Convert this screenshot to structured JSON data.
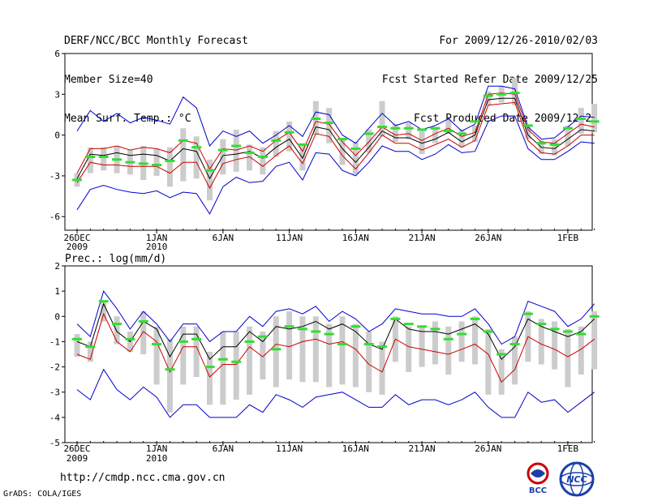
{
  "header": {
    "left": [
      "DERF/NCC/BCC Monthly Forecast",
      "Member Size=40",
      "Mean Surf. Temp.: °C"
    ],
    "right": [
      "For 2009/12/26-2010/02/03",
      "Fcst Started Refer Date 2009/12/25",
      "Fcst Produced Date 2009/12/26"
    ]
  },
  "footer": {
    "url": "http://cmdp.ncc.cma.gov.cn",
    "credit": "GrADS: COLA/IGES"
  },
  "logos": [
    {
      "icon": "bcc-logo",
      "text": "BCC"
    },
    {
      "icon": "ncc-logo",
      "text": "NCC"
    }
  ],
  "colors": {
    "mean": "#000000",
    "upper": "#0000cc",
    "lower": "#0000cc",
    "median_sd": "#cc0000",
    "box": "#cccccc",
    "obs": "#33dd33",
    "axis": "#000000"
  },
  "chart_data": [
    {
      "type": "line",
      "title": "Mean Surf. Temp.: °C",
      "ylim": [
        -7,
        6
      ],
      "yticks": [
        6,
        3,
        0,
        -3,
        -6
      ],
      "xticks": [
        {
          "day": 0,
          "label": "26DEC",
          "sub": "2009"
        },
        {
          "day": 6,
          "label": "1JAN",
          "sub": "2010"
        },
        {
          "day": 11,
          "label": "6JAN",
          "sub": ""
        },
        {
          "day": 16,
          "label": "11JAN",
          "sub": ""
        },
        {
          "day": 21,
          "label": "16JAN",
          "sub": ""
        },
        {
          "day": 26,
          "label": "21JAN",
          "sub": ""
        },
        {
          "day": 31,
          "label": "26JAN",
          "sub": ""
        },
        {
          "day": 37,
          "label": "1FEB",
          "sub": ""
        }
      ],
      "n_days": 40,
      "series": [
        {
          "name": "upper",
          "values": [
            0.3,
            1.8,
            1.0,
            1.6,
            0.9,
            1.3,
            1.1,
            0.8,
            2.8,
            2.0,
            -0.8,
            0.3,
            -0.1,
            0.3,
            -0.6,
            0.0,
            0.7,
            -0.1,
            1.7,
            1.5,
            0.0,
            -0.6,
            0.5,
            1.6,
            0.7,
            1.0,
            0.4,
            0.7,
            1.2,
            0.3,
            0.8,
            3.6,
            3.6,
            3.4,
            0.6,
            -0.3,
            -0.2,
            0.6,
            1.4,
            1.3
          ]
        },
        {
          "name": "median_sd",
          "values": [
            -2.8,
            -1.0,
            -1.0,
            -0.8,
            -1.1,
            -0.9,
            -1.0,
            -1.3,
            -0.4,
            -0.6,
            -2.5,
            -1.0,
            -1.1,
            -0.8,
            -1.2,
            -0.4,
            0.2,
            -1.2,
            1.0,
            0.8,
            -0.5,
            -1.5,
            -0.5,
            0.6,
            0.0,
            0.1,
            -0.4,
            0.1,
            0.5,
            -0.1,
            0.2,
            3.0,
            3.1,
            3.0,
            0.4,
            -0.5,
            -0.6,
            0.1,
            0.8,
            0.6
          ]
        },
        {
          "name": "mean",
          "values": [
            -3.2,
            -1.4,
            -1.5,
            -1.3,
            -1.5,
            -1.4,
            -1.5,
            -1.9,
            -1.0,
            -1.2,
            -3.2,
            -1.5,
            -1.4,
            -1.2,
            -1.7,
            -0.9,
            -0.3,
            -1.7,
            0.6,
            0.4,
            -1.0,
            -2.0,
            -0.9,
            0.3,
            -0.2,
            -0.2,
            -0.6,
            -0.3,
            0.2,
            -0.5,
            0.0,
            2.6,
            2.7,
            2.7,
            0.0,
            -0.9,
            -1.0,
            -0.3,
            0.4,
            0.3
          ]
        },
        {
          "name": "median_sd",
          "values": [
            -3.5,
            -2.0,
            -2.2,
            -2.2,
            -2.3,
            -2.3,
            -2.3,
            -2.8,
            -2.0,
            -2.0,
            -3.9,
            -2.1,
            -1.8,
            -1.6,
            -2.3,
            -1.5,
            -0.8,
            -2.1,
            0.1,
            -0.1,
            -1.5,
            -2.5,
            -1.3,
            0.0,
            -0.6,
            -0.6,
            -1.1,
            -0.7,
            -0.3,
            -0.9,
            -0.4,
            2.2,
            2.3,
            2.4,
            -0.4,
            -1.3,
            -1.4,
            -0.8,
            0.0,
            0.0
          ]
        },
        {
          "name": "lower",
          "values": [
            -5.5,
            -4.0,
            -3.7,
            -4.0,
            -4.2,
            -4.3,
            -4.1,
            -4.6,
            -4.2,
            -4.3,
            -5.8,
            -3.8,
            -3.1,
            -3.5,
            -3.4,
            -2.3,
            -2.0,
            -3.3,
            -1.3,
            -1.4,
            -2.6,
            -3.0,
            -2.0,
            -0.8,
            -1.2,
            -1.2,
            -1.8,
            -1.4,
            -0.7,
            -1.3,
            -1.2,
            1.0,
            1.4,
            1.4,
            -1.0,
            -1.8,
            -1.8,
            -1.2,
            -0.5,
            -0.6
          ]
        },
        {
          "name": "box_top",
          "values": [
            -2.8,
            -0.9,
            -0.9,
            -0.8,
            -1.1,
            -0.8,
            -1.0,
            -0.9,
            0.5,
            -0.1,
            -1.8,
            -0.3,
            0.4,
            -0.7,
            -0.9,
            0.3,
            1.0,
            -0.7,
            2.5,
            2.0,
            -0.2,
            -0.5,
            0.4,
            2.5,
            0.8,
            0.9,
            0.3,
            0.6,
            1.2,
            0.4,
            0.7,
            3.2,
            3.6,
            4.2,
            0.6,
            -0.4,
            -0.3,
            0.7,
            2.0,
            2.3
          ]
        },
        {
          "name": "box_bottom",
          "values": [
            -3.8,
            -2.8,
            -2.6,
            -2.8,
            -2.9,
            -3.3,
            -3.0,
            -3.8,
            -3.4,
            -3.2,
            -4.8,
            -2.9,
            -2.7,
            -2.6,
            -2.9,
            -1.6,
            -1.2,
            -2.6,
            0.0,
            -0.6,
            -2.2,
            -2.9,
            -1.3,
            -0.1,
            -0.5,
            -0.3,
            -1.4,
            -0.6,
            0.1,
            -0.9,
            -0.5,
            2.2,
            2.4,
            2.2,
            -0.3,
            -1.4,
            -1.5,
            -0.8,
            0.1,
            0.2
          ]
        },
        {
          "name": "obs",
          "values": [
            -3.3,
            -1.6,
            -1.6,
            -1.8,
            -2.0,
            -2.1,
            -2.2,
            -1.9,
            -0.4,
            -0.9,
            -2.6,
            -1.1,
            -0.8,
            -1.3,
            -1.6,
            -0.4,
            0.2,
            -0.7,
            1.2,
            0.9,
            -0.3,
            -1.0,
            0.1,
            0.6,
            0.5,
            0.5,
            0.4,
            0.5,
            0.3,
            0.1,
            1.0,
            2.9,
            3.0,
            3.1,
            0.7,
            -0.6,
            -0.7,
            0.5,
            1.2,
            1.0
          ]
        }
      ]
    },
    {
      "type": "line",
      "title": "Prec.: log(mm/d)",
      "ylim": [
        -5,
        2
      ],
      "yticks": [
        2,
        1,
        0,
        -1,
        -2,
        -3,
        -4,
        -5
      ],
      "xticks": [
        {
          "day": 0,
          "label": "26DEC",
          "sub": "2009"
        },
        {
          "day": 6,
          "label": "1JAN",
          "sub": "2010"
        },
        {
          "day": 11,
          "label": "6JAN",
          "sub": ""
        },
        {
          "day": 16,
          "label": "11JAN",
          "sub": ""
        },
        {
          "day": 21,
          "label": "16JAN",
          "sub": ""
        },
        {
          "day": 26,
          "label": "21JAN",
          "sub": ""
        },
        {
          "day": 31,
          "label": "26JAN",
          "sub": ""
        },
        {
          "day": 37,
          "label": "1FEB",
          "sub": ""
        }
      ],
      "n_days": 40,
      "series": [
        {
          "name": "upper",
          "values": [
            -0.3,
            -0.8,
            1.0,
            0.3,
            -0.5,
            0.2,
            -0.3,
            -1.0,
            -0.3,
            -0.3,
            -1.0,
            -0.6,
            -0.6,
            0.0,
            -0.4,
            0.2,
            0.3,
            0.1,
            0.4,
            -0.2,
            0.2,
            -0.1,
            -0.6,
            -0.3,
            0.3,
            0.2,
            0.1,
            0.1,
            0.0,
            0.0,
            0.3,
            -0.3,
            -1.1,
            -0.8,
            0.6,
            0.4,
            0.2,
            -0.4,
            -0.1,
            0.5
          ]
        },
        {
          "name": "mean",
          "values": [
            -1.0,
            -1.2,
            0.5,
            -0.6,
            -1.0,
            -0.2,
            -0.5,
            -1.6,
            -0.7,
            -0.7,
            -1.7,
            -1.2,
            -1.2,
            -0.6,
            -1.0,
            -0.4,
            -0.5,
            -0.4,
            -0.2,
            -0.5,
            -0.3,
            -0.6,
            -1.1,
            -1.3,
            -0.1,
            -0.5,
            -0.6,
            -0.6,
            -0.7,
            -0.5,
            -0.3,
            -0.7,
            -1.7,
            -1.2,
            -0.1,
            -0.4,
            -0.6,
            -0.8,
            -0.6,
            -0.1
          ]
        },
        {
          "name": "median_sd",
          "values": [
            -1.5,
            -1.7,
            0.1,
            -1.0,
            -1.4,
            -0.6,
            -1.0,
            -2.2,
            -1.2,
            -1.2,
            -2.4,
            -1.9,
            -1.9,
            -1.2,
            -1.6,
            -1.1,
            -1.2,
            -1.0,
            -0.9,
            -1.1,
            -1.0,
            -1.3,
            -1.9,
            -2.2,
            -0.9,
            -1.2,
            -1.3,
            -1.4,
            -1.5,
            -1.3,
            -1.1,
            -1.5,
            -2.6,
            -2.1,
            -0.8,
            -1.1,
            -1.3,
            -1.6,
            -1.3,
            -0.9
          ]
        },
        {
          "name": "lower",
          "values": [
            -2.9,
            -3.3,
            -2.1,
            -2.9,
            -3.3,
            -2.8,
            -3.2,
            -4.0,
            -3.5,
            -3.5,
            -4.0,
            -4.0,
            -4.0,
            -3.5,
            -3.8,
            -3.1,
            -3.3,
            -3.6,
            -3.2,
            -3.1,
            -3.0,
            -3.3,
            -3.6,
            -3.6,
            -3.1,
            -3.5,
            -3.3,
            -3.3,
            -3.5,
            -3.3,
            -3.0,
            -3.6,
            -4.0,
            -4.0,
            -3.0,
            -3.4,
            -3.3,
            -3.8,
            -3.4,
            -3.0
          ]
        },
        {
          "name": "box_top",
          "values": [
            -0.7,
            -1.0,
            0.6,
            0.0,
            -0.6,
            0.2,
            -0.4,
            -0.9,
            -0.4,
            -0.4,
            -1.4,
            -0.6,
            -0.6,
            -0.4,
            -0.6,
            0.0,
            0.2,
            0.0,
            0.0,
            -0.3,
            0.0,
            -0.3,
            -0.6,
            -1.0,
            0.0,
            -0.4,
            -0.4,
            -0.2,
            -0.4,
            -0.2,
            0.0,
            -0.5,
            -1.3,
            -0.8,
            0.2,
            -0.1,
            -0.2,
            -0.5,
            -0.4,
            0.2
          ]
        },
        {
          "name": "box_bottom",
          "values": [
            -1.6,
            -1.8,
            -0.2,
            -1.1,
            -1.4,
            -1.5,
            -2.7,
            -3.8,
            -2.7,
            -2.4,
            -3.5,
            -3.5,
            -3.3,
            -3.1,
            -2.5,
            -2.8,
            -2.5,
            -2.6,
            -2.6,
            -2.8,
            -2.7,
            -2.8,
            -3.0,
            -3.1,
            -1.8,
            -2.2,
            -2.0,
            -1.9,
            -2.3,
            -1.8,
            -1.9,
            -3.1,
            -3.1,
            -2.7,
            -1.8,
            -1.9,
            -2.1,
            -2.8,
            -2.3,
            -2.1
          ]
        },
        {
          "name": "obs",
          "values": [
            -0.9,
            -1.2,
            0.6,
            -0.3,
            -0.9,
            -0.2,
            -1.1,
            -2.1,
            -1.0,
            -0.9,
            -2.0,
            -1.7,
            -1.8,
            -1.0,
            -0.8,
            -1.3,
            -0.4,
            -0.5,
            -0.6,
            -0.7,
            -1.1,
            -0.4,
            -1.1,
            -1.2,
            -0.1,
            -0.3,
            -0.4,
            -0.5,
            -0.9,
            -0.7,
            -0.1,
            -0.6,
            -1.5,
            -1.1,
            0.1,
            -0.3,
            -0.5,
            -0.6,
            -0.7,
            0.0
          ]
        }
      ]
    }
  ]
}
